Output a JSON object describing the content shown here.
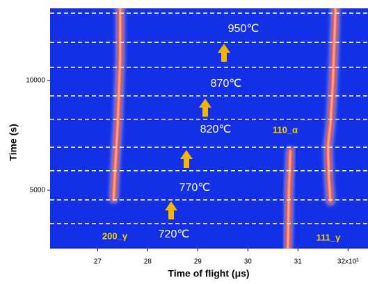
{
  "chart_data": {
    "type": "heatmap",
    "x_label": "Time of flight (μs)",
    "y_label": "Time (s)",
    "xlim": [
      26.05,
      32.4
    ],
    "ylim": [
      2340,
      13290
    ],
    "xticks": [
      27,
      28,
      29,
      30,
      31,
      {
        "value": 32,
        "label": "32x10³"
      }
    ],
    "yticks": [
      5000,
      10000
    ],
    "background": "#1430e6",
    "line_color": "#ffffff",
    "dashed_lines": [
      13070,
      11740,
      10600,
      9300,
      8230,
      6960,
      5890,
      4560,
      3480
    ],
    "temperatures": [
      "950℃",
      "870℃",
      "820℃",
      "770℃",
      "720℃"
    ],
    "peaks": [
      {
        "name": "200_γ",
        "x": [
          27.45,
          27.45,
          27.4,
          27.35,
          27.32
        ],
        "y": [
          13290,
          11000,
          8000,
          6000,
          4600
        ]
      },
      {
        "name": "110_α",
        "x": [
          30.85,
          30.82,
          30.8
        ],
        "y": [
          6800,
          5000,
          2340
        ]
      },
      {
        "name": "111_γ",
        "x": [
          31.75,
          31.7,
          31.65,
          31.6,
          31.62,
          31.65
        ],
        "y": [
          13290,
          10000,
          8000,
          7000,
          5500,
          4500
        ]
      }
    ]
  }
}
